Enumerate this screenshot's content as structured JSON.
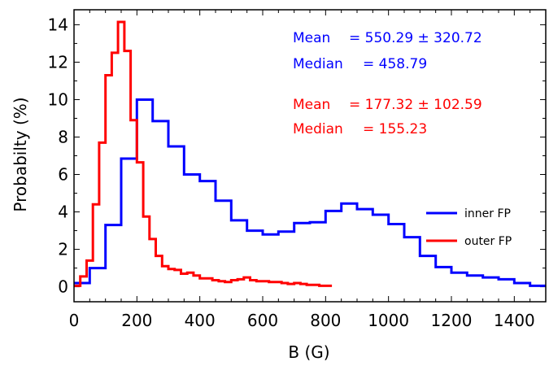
{
  "chart_data": {
    "type": "line",
    "step": true,
    "title": "",
    "xlabel": "B (G)",
    "ylabel": "Probabilty (%)",
    "xlim": [
      0,
      1500
    ],
    "ylim": [
      -0.8,
      14.8
    ],
    "xticks": [
      0,
      200,
      400,
      600,
      800,
      1000,
      1200,
      1400
    ],
    "yticks": [
      0,
      2,
      4,
      6,
      8,
      10,
      12,
      14
    ],
    "grid": false,
    "legend_position": "right",
    "series": [
      {
        "name": "inner FP",
        "color": "#0000ff",
        "bin_width": 50,
        "x_start": 0,
        "values": [
          0.2,
          1.0,
          3.3,
          6.85,
          10.0,
          8.85,
          7.5,
          6.0,
          5.65,
          4.6,
          3.55,
          3.0,
          2.8,
          2.95,
          3.4,
          3.45,
          4.05,
          4.45,
          4.15,
          3.85,
          3.35,
          2.65,
          1.65,
          1.05,
          0.75,
          0.6,
          0.5,
          0.4,
          0.2,
          0.05
        ]
      },
      {
        "name": "outer FP",
        "color": "#ff0000",
        "bin_width": 20,
        "x_start": 0,
        "values": [
          0.05,
          0.55,
          1.4,
          4.4,
          7.7,
          11.3,
          12.5,
          14.15,
          12.6,
          8.9,
          6.65,
          3.75,
          2.55,
          1.65,
          1.1,
          0.95,
          0.9,
          0.7,
          0.75,
          0.6,
          0.45,
          0.45,
          0.35,
          0.3,
          0.25,
          0.35,
          0.4,
          0.5,
          0.35,
          0.3,
          0.3,
          0.25,
          0.25,
          0.2,
          0.15,
          0.2,
          0.15,
          0.1,
          0.1,
          0.05,
          0.05
        ]
      }
    ],
    "annotations": [
      {
        "label": "Mean",
        "value": "= 550.29 ± 320.72",
        "color": "#0000ff"
      },
      {
        "label": "Median",
        "value": "= 458.79",
        "color": "#0000ff"
      },
      {
        "label": "Mean",
        "value": "= 177.32 ± 102.59",
        "color": "#ff0000"
      },
      {
        "label": "Median",
        "value": "= 155.23",
        "color": "#ff0000"
      }
    ]
  }
}
